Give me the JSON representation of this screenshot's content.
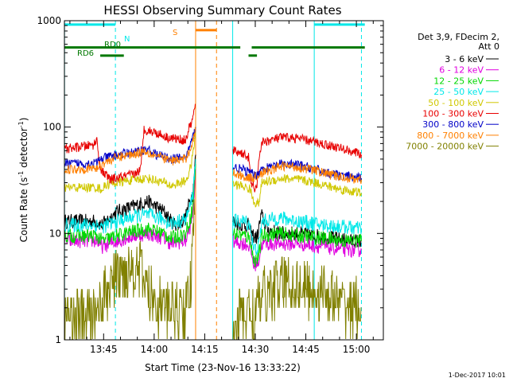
{
  "chart_data": {
    "type": "line",
    "title": "HESSI Observing Summary Count Rates",
    "xlabel": "Start Time (23-Nov-16 13:33:22)",
    "ylabel_main": "Count Rate (s",
    "ylabel_sup1": "-1",
    "ylabel_mid": " detector",
    "ylabel_sup2": "-1",
    "ylabel_end": ")",
    "y_scale": "log",
    "ylim": [
      1,
      1000
    ],
    "xlim": [
      "13:33:22",
      "15:08:00"
    ],
    "y_ticks": [
      {
        "value": 1,
        "label": "1"
      },
      {
        "value": 10,
        "label": "10"
      },
      {
        "value": 100,
        "label": "100"
      },
      {
        "value": 1000,
        "label": "1000"
      }
    ],
    "x_ticks": [
      {
        "minutes": 825,
        "label": "13:45"
      },
      {
        "minutes": 840,
        "label": "14:00"
      },
      {
        "minutes": 855,
        "label": "14:15"
      },
      {
        "minutes": 870,
        "label": "14:30"
      },
      {
        "minutes": 885,
        "label": "14:45"
      },
      {
        "minutes": 900,
        "label": "15:00"
      }
    ],
    "legend_header": [
      "Det 3,9, FDecim 2,",
      "Att 0"
    ],
    "legend_position": "right",
    "series": [
      {
        "name": "3 - 6 keV",
        "color": "#000000",
        "profile": [
          [
            813.4,
            13
          ],
          [
            823,
            13
          ],
          [
            824.5,
            12
          ],
          [
            829,
            16
          ],
          [
            834,
            18
          ],
          [
            838,
            20
          ],
          [
            843,
            16
          ],
          [
            845,
            13
          ],
          [
            847,
            12
          ],
          [
            849.3,
            14
          ],
          [
            850.5,
            20
          ],
          [
            851.5,
            24
          ],
          [
            852.3,
            55
          ],
          [
            853.4,
            null
          ],
          [
            863.2,
            null
          ],
          [
            863.4,
            13
          ],
          [
            866.5,
            12
          ],
          [
            868,
            12
          ],
          [
            868.7,
            10
          ],
          [
            870.5,
            9
          ],
          [
            871.8,
            15
          ],
          [
            873.5,
            11
          ],
          [
            877,
            10
          ],
          [
            883,
            10
          ],
          [
            888,
            9.5
          ],
          [
            893,
            9
          ],
          [
            898,
            8.5
          ],
          [
            901.5,
            8.5
          ]
        ]
      },
      {
        "name": "6 - 12 keV",
        "color": "#e000e0",
        "profile": [
          [
            813.4,
            8.5
          ],
          [
            823,
            8.5
          ],
          [
            824.5,
            7.5
          ],
          [
            829,
            8.5
          ],
          [
            834,
            9.5
          ],
          [
            838,
            10
          ],
          [
            843,
            9
          ],
          [
            845,
            8
          ],
          [
            849.3,
            8.5
          ],
          [
            850.5,
            11
          ],
          [
            851.5,
            15
          ],
          [
            852.3,
            40
          ],
          [
            853.4,
            null
          ],
          [
            863.2,
            null
          ],
          [
            863.4,
            8.5
          ],
          [
            867,
            8
          ],
          [
            868.5,
            7.5
          ],
          [
            869.5,
            5
          ],
          [
            871,
            5.5
          ],
          [
            872,
            8
          ],
          [
            877,
            8
          ],
          [
            883,
            8
          ],
          [
            890,
            7.5
          ],
          [
            897,
            7
          ],
          [
            901.5,
            7
          ]
        ]
      },
      {
        "name": "12 - 25 keV",
        "color": "#00d800",
        "profile": [
          [
            813.4,
            9.5
          ],
          [
            823,
            9.5
          ],
          [
            824.5,
            8.5
          ],
          [
            829,
            9.5
          ],
          [
            834,
            10.5
          ],
          [
            838,
            11
          ],
          [
            843,
            10
          ],
          [
            845,
            9
          ],
          [
            849.3,
            10
          ],
          [
            850.5,
            13
          ],
          [
            851.5,
            18
          ],
          [
            852.3,
            45
          ],
          [
            853.4,
            null
          ],
          [
            863.2,
            null
          ],
          [
            863.4,
            10
          ],
          [
            867,
            9.5
          ],
          [
            868.5,
            9
          ],
          [
            869.5,
            5.5
          ],
          [
            871,
            6
          ],
          [
            872,
            9.5
          ],
          [
            877,
            10
          ],
          [
            883,
            9.5
          ],
          [
            890,
            9
          ],
          [
            897,
            8.5
          ],
          [
            901.5,
            8.5
          ]
        ]
      },
      {
        "name": "25 - 50 keV",
        "color": "#00e8e8",
        "profile": [
          [
            813.4,
            12
          ],
          [
            823,
            12
          ],
          [
            824.5,
            11.5
          ],
          [
            829,
            13
          ],
          [
            834,
            14.5
          ],
          [
            838,
            15
          ],
          [
            843,
            13.5
          ],
          [
            845,
            12.5
          ],
          [
            849.3,
            13.5
          ],
          [
            850.5,
            17
          ],
          [
            851.5,
            24
          ],
          [
            852.3,
            50
          ],
          [
            853.4,
            null
          ],
          [
            863.2,
            null
          ],
          [
            863.4,
            13
          ],
          [
            867,
            13
          ],
          [
            868.5,
            12
          ],
          [
            869.5,
            7
          ],
          [
            871,
            7.5
          ],
          [
            872,
            13
          ],
          [
            877,
            14
          ],
          [
            883,
            13
          ],
          [
            890,
            12
          ],
          [
            897,
            11.5
          ],
          [
            901.5,
            11
          ]
        ]
      },
      {
        "name": "50 - 100 keV",
        "color": "#d0c800",
        "profile": [
          [
            813.4,
            27
          ],
          [
            823,
            27
          ],
          [
            824.5,
            26
          ],
          [
            826,
            29
          ],
          [
            834,
            32
          ],
          [
            838,
            33
          ],
          [
            843,
            30
          ],
          [
            845,
            28
          ],
          [
            849.3,
            31
          ],
          [
            850.5,
            38
          ],
          [
            851.5,
            55
          ],
          [
            852.3,
            90
          ],
          [
            853.4,
            null
          ],
          [
            863.2,
            null
          ],
          [
            863.4,
            29
          ],
          [
            866,
            28
          ],
          [
            868.5,
            26
          ],
          [
            869.5,
            20
          ],
          [
            871,
            19
          ],
          [
            872,
            30
          ],
          [
            878,
            33
          ],
          [
            883,
            32
          ],
          [
            888,
            30
          ],
          [
            893,
            27
          ],
          [
            898,
            25
          ],
          [
            901.5,
            24
          ]
        ]
      },
      {
        "name": "100 - 300 keV",
        "color": "#e80000",
        "profile": [
          [
            813.4,
            62
          ],
          [
            822,
            68
          ],
          [
            823,
            76
          ],
          [
            824,
            40
          ],
          [
            827,
            32
          ],
          [
            834,
            36
          ],
          [
            836,
            40
          ],
          [
            837,
            95
          ],
          [
            840,
            90
          ],
          [
            844,
            80
          ],
          [
            849.3,
            75
          ],
          [
            850.5,
            100
          ],
          [
            851.5,
            120
          ],
          [
            852.2,
            165
          ],
          [
            853.4,
            null
          ],
          [
            863.2,
            null
          ],
          [
            863.4,
            60
          ],
          [
            866,
            57
          ],
          [
            868,
            52
          ],
          [
            868.7,
            30
          ],
          [
            870.5,
            25
          ],
          [
            871,
            50
          ],
          [
            872,
            72
          ],
          [
            878,
            80
          ],
          [
            883,
            78
          ],
          [
            888,
            72
          ],
          [
            893,
            66
          ],
          [
            898,
            60
          ],
          [
            901.5,
            55
          ]
        ]
      },
      {
        "name": "300 - 800 keV",
        "color": "#0000c8",
        "profile": [
          [
            813.4,
            45
          ],
          [
            823,
            46
          ],
          [
            824,
            50
          ],
          [
            829,
            55
          ],
          [
            834,
            58
          ],
          [
            838,
            62
          ],
          [
            840,
            56
          ],
          [
            845,
            50
          ],
          [
            849.3,
            52
          ],
          [
            850.5,
            65
          ],
          [
            851.5,
            80
          ],
          [
            852.3,
            100
          ],
          [
            853.4,
            null
          ],
          [
            863.2,
            null
          ],
          [
            863.4,
            42
          ],
          [
            866,
            40
          ],
          [
            868,
            38
          ],
          [
            870,
            35
          ],
          [
            872,
            40
          ],
          [
            878,
            45
          ],
          [
            883,
            44
          ],
          [
            888,
            40
          ],
          [
            893,
            36
          ],
          [
            898,
            34
          ],
          [
            901.5,
            33
          ]
        ]
      },
      {
        "name": "800 - 7000 keV",
        "color": "#ff8000",
        "profile": [
          [
            813.4,
            40
          ],
          [
            823,
            41
          ],
          [
            825,
            46
          ],
          [
            829,
            52
          ],
          [
            834,
            56
          ],
          [
            837,
            60
          ],
          [
            840,
            55
          ],
          [
            845,
            48
          ],
          [
            849.3,
            50
          ],
          [
            850.5,
            60
          ],
          [
            851.5,
            75
          ],
          [
            852.3,
            95
          ],
          [
            853.4,
            null
          ],
          [
            863.2,
            null
          ],
          [
            863.4,
            37
          ],
          [
            866,
            35
          ],
          [
            868,
            33
          ],
          [
            870,
            34
          ],
          [
            872,
            37
          ],
          [
            878,
            43
          ],
          [
            883,
            42
          ],
          [
            888,
            39
          ],
          [
            893,
            35
          ],
          [
            898,
            33
          ],
          [
            901.5,
            32
          ]
        ]
      },
      {
        "name": "7000 - 20000 keV",
        "color": "#808000",
        "profile": [
          [
            813.4,
            1.6
          ],
          [
            822,
            1.7
          ],
          [
            824,
            2.2
          ],
          [
            829,
            4
          ],
          [
            834,
            5
          ],
          [
            836,
            4.5
          ],
          [
            838,
            3
          ],
          [
            843,
            2
          ],
          [
            849.3,
            2
          ],
          [
            851,
            3.5
          ],
          [
            852,
            15
          ],
          [
            853.4,
            null
          ],
          [
            863.2,
            null
          ],
          [
            863.4,
            1.7
          ],
          [
            870,
            1.8
          ],
          [
            872,
            2.5
          ],
          [
            878,
            3.5
          ],
          [
            883,
            3.2
          ],
          [
            890,
            2.8
          ],
          [
            895,
            2.2
          ],
          [
            901.5,
            2
          ]
        ]
      }
    ],
    "gaps": [
      {
        "start": "14:10:24",
        "end": "14:20:12"
      }
    ],
    "flags": [
      {
        "label": "N",
        "color": "#00e8e8",
        "segments": [
          [
            813.4,
            828.5
          ],
          [
            887.5,
            902.5
          ]
        ],
        "level": 920
      },
      {
        "label": "S",
        "color": "#ff8000",
        "segments": [
          [
            852.3,
            858.5
          ]
        ],
        "level": 815
      },
      {
        "label": "RD0",
        "color": "#007800",
        "segments": [
          [
            813.4,
            837.2
          ],
          [
            837.2,
            866.5
          ],
          [
            868.0,
            902.5
          ]
        ],
        "level": 560
      },
      {
        "label": "RD6",
        "color": "#007800",
        "segments": [
          [
            824.0,
            831.0
          ],
          [
            868.0,
            870.5
          ]
        ],
        "level": 470
      }
    ],
    "vertical_markers": [
      {
        "minutes": 828.5,
        "color": "#00e8e8",
        "style": "dashed"
      },
      {
        "minutes": 887.5,
        "color": "#00e8e8",
        "style": "solid"
      },
      {
        "minutes": 901.5,
        "color": "#00e8e8",
        "style": "dashed"
      },
      {
        "minutes": 813.4,
        "color": "#00e8e8",
        "style": "solid"
      },
      {
        "minutes": 852.3,
        "color": "#ff8000",
        "style": "solid"
      },
      {
        "minutes": 858.5,
        "color": "#ff8000",
        "style": "dashed"
      },
      {
        "minutes": 863.3,
        "color": "#00e8e8",
        "style": "solid"
      }
    ],
    "grid": false
  },
  "footer": {
    "timestamp": "1-Dec-2017 10:01"
  }
}
